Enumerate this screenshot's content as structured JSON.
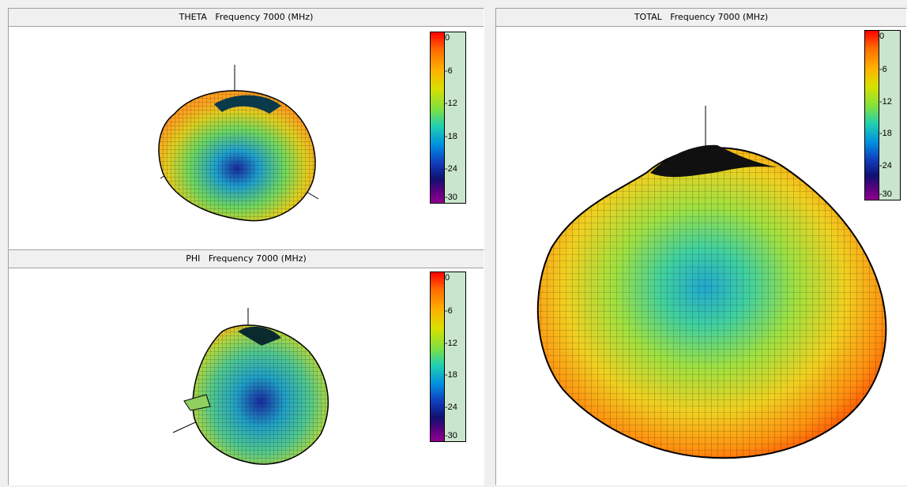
{
  "panels": {
    "theta": {
      "title": "THETA   Frequency 7000 (MHz)"
    },
    "phi": {
      "title": "PHI   Frequency 7000 (MHz)"
    },
    "total": {
      "title": "TOTAL   Frequency 7000 (MHz)"
    }
  },
  "legend": {
    "ticks": [
      "0",
      "-6",
      "-12",
      "-18",
      "-24",
      "-30"
    ],
    "unit_colors": {
      "top": "#ff0000",
      "mid": "#20d0b0",
      "bottom": "#900090",
      "background": "#c9e5cc"
    }
  }
}
